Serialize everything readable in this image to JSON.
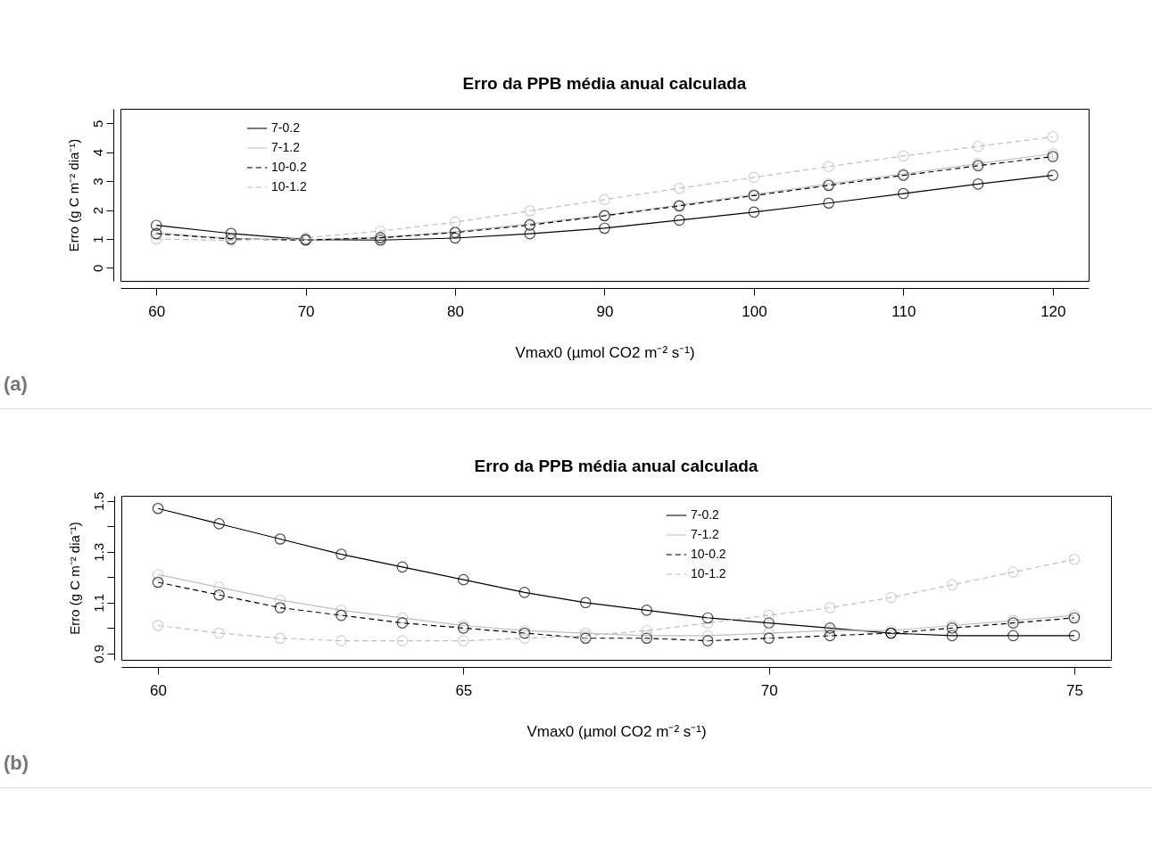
{
  "chart_data": [
    {
      "type": "line",
      "title": "Erro da PPB média anual calculada",
      "xlabel": "Vmax0 (µmol CO2  m⁻² s⁻¹)",
      "ylabel": "Erro (g C m⁻² dia⁻¹)",
      "x": [
        60,
        65,
        70,
        75,
        80,
        85,
        90,
        95,
        100,
        105,
        110,
        115,
        120
      ],
      "xlim": [
        57.6,
        122.4
      ],
      "xticks": [
        60,
        70,
        80,
        90,
        100,
        110,
        120
      ],
      "ylim": [
        -0.45,
        5.5
      ],
      "yticks": [
        0,
        1,
        2,
        3,
        4,
        5
      ],
      "grid": false,
      "legend": "top left",
      "marker": "circle",
      "annotations": [
        "(a)"
      ],
      "series": [
        {
          "name": "7-0.2",
          "color": "#000000",
          "line_style": "solid",
          "values": [
            1.47,
            1.19,
            0.98,
            0.96,
            1.03,
            1.18,
            1.37,
            1.65,
            1.93,
            2.24,
            2.57,
            2.9,
            3.2
          ]
        },
        {
          "name": "7-1.2",
          "color": "#bebebe",
          "line_style": "solid",
          "values": [
            1.21,
            1.01,
            0.97,
            1.05,
            1.25,
            1.52,
            1.82,
            2.17,
            2.54,
            2.9,
            3.25,
            3.6,
            3.95
          ]
        },
        {
          "name": "10-0.2",
          "color": "#000000",
          "line_style": "dashed",
          "values": [
            1.18,
            1.0,
            0.96,
            1.04,
            1.22,
            1.48,
            1.8,
            2.14,
            2.5,
            2.85,
            3.2,
            3.53,
            3.85
          ]
        },
        {
          "name": "10-1.2",
          "color": "#bebebe",
          "line_style": "dashed",
          "values": [
            1.0,
            0.95,
            1.04,
            1.27,
            1.58,
            1.97,
            2.36,
            2.75,
            3.13,
            3.5,
            3.87,
            4.2,
            4.53
          ]
        }
      ]
    },
    {
      "type": "line",
      "title": "Erro da PPB média anual calculada",
      "xlabel": "Vmax0 (µmol CO2  m⁻² s⁻¹)",
      "ylabel": "Erro (g C m⁻² dia⁻¹)",
      "x": [
        60,
        61,
        62,
        63,
        64,
        65,
        66,
        67,
        68,
        69,
        70,
        71,
        72,
        73,
        74,
        75
      ],
      "xlim": [
        59.4,
        75.6
      ],
      "xticks": [
        60,
        65,
        70,
        75
      ],
      "ylim": [
        0.875,
        1.52
      ],
      "yticks": [
        0.9,
        {
          "value": 1.0,
          "label": null
        },
        1.1,
        {
          "value": 1.2,
          "label": null
        },
        1.3,
        {
          "value": 1.4,
          "label": null
        },
        1.5
      ],
      "grid": false,
      "legend": "top",
      "marker": "circle",
      "annotations": [
        "(b)"
      ],
      "series": [
        {
          "name": "7-0.2",
          "color": "#000000",
          "line_style": "solid",
          "values": [
            1.47,
            1.41,
            1.35,
            1.29,
            1.24,
            1.19,
            1.14,
            1.1,
            1.07,
            1.04,
            1.02,
            1.0,
            0.98,
            0.97,
            0.97,
            0.97
          ]
        },
        {
          "name": "7-1.2",
          "color": "#bebebe",
          "line_style": "solid",
          "values": [
            1.21,
            1.16,
            1.11,
            1.07,
            1.04,
            1.01,
            0.99,
            0.98,
            0.97,
            0.97,
            0.98,
            0.99,
            0.99,
            1.01,
            1.03,
            1.05
          ]
        },
        {
          "name": "10-0.2",
          "color": "#000000",
          "line_style": "dashed",
          "values": [
            1.18,
            1.13,
            1.08,
            1.05,
            1.02,
            1.0,
            0.98,
            0.96,
            0.96,
            0.95,
            0.96,
            0.97,
            0.98,
            1.0,
            1.02,
            1.04
          ]
        },
        {
          "name": "10-1.2",
          "color": "#bebebe",
          "line_style": "dashed",
          "values": [
            1.01,
            0.98,
            0.96,
            0.95,
            0.95,
            0.95,
            0.96,
            0.97,
            0.99,
            1.02,
            1.05,
            1.08,
            1.12,
            1.17,
            1.22,
            1.27
          ]
        }
      ]
    }
  ]
}
